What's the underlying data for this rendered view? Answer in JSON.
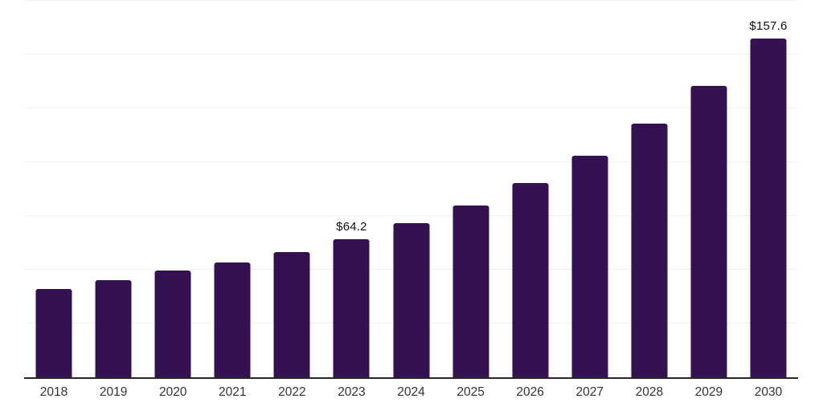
{
  "chart": {
    "background_color": "#ffffff",
    "bar_color": "#341252",
    "axis_line_color": "#262626",
    "gridline_color": "#f0f0f0",
    "value_label_color": "#111111",
    "tick_label_color": "#333333"
  },
  "chart_data": {
    "type": "bar",
    "title": "",
    "xlabel": "",
    "ylabel": "",
    "categories": [
      "2018",
      "2019",
      "2020",
      "2021",
      "2022",
      "2023",
      "2024",
      "2025",
      "2026",
      "2027",
      "2028",
      "2029",
      "2030"
    ],
    "values": [
      41.0,
      45.2,
      49.5,
      53.4,
      58.2,
      64.2,
      71.7,
      79.9,
      90.3,
      103.0,
      117.9,
      135.4,
      157.6
    ],
    "data_labels": [
      "",
      "",
      "",
      "",
      "",
      "$64.2",
      "",
      "",
      "",
      "",
      "",
      "",
      "$157.6"
    ],
    "ylim": [
      0,
      175
    ],
    "gridline_values": [
      25,
      50,
      75,
      100,
      125,
      150,
      175
    ],
    "grid": "horizontal-only",
    "y_axis_labels_visible": false,
    "legend": "none"
  }
}
